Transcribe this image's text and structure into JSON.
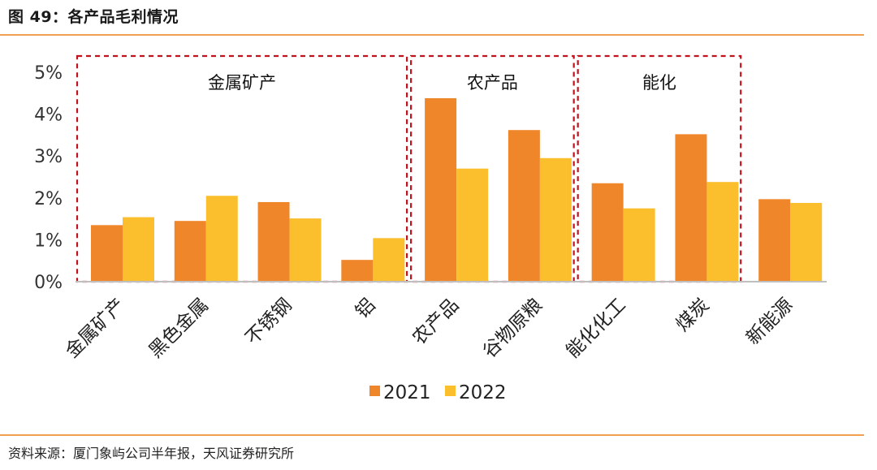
{
  "figure": {
    "title": "图 49：各产品毛利情况",
    "source": "资料来源：厦门象屿公司半年报，天风证券研究所"
  },
  "colors": {
    "series_2021": "#f0862a",
    "series_2022": "#fbbf2e",
    "group_box": "#c0131e",
    "axis": "#bfbfbf",
    "rule": "#f0a050"
  },
  "chart_data": {
    "type": "bar",
    "categories": [
      "金属矿产",
      "黑色金属",
      "不锈钢",
      "铝",
      "农产品",
      "谷物原粮",
      "能化化工",
      "煤炭",
      "新能源"
    ],
    "series": [
      {
        "name": "2021",
        "values": [
          1.35,
          1.45,
          1.9,
          0.52,
          4.38,
          3.62,
          2.35,
          3.52,
          1.97
        ]
      },
      {
        "name": "2022",
        "values": [
          1.54,
          2.05,
          1.51,
          1.04,
          2.7,
          2.95,
          1.75,
          2.38,
          1.88
        ]
      }
    ],
    "ylim": [
      0,
      5
    ],
    "yticks": [
      "0%",
      "1%",
      "2%",
      "3%",
      "4%",
      "5%"
    ],
    "grid": false,
    "legend": "bottom",
    "annotations": [
      {
        "label": "金属矿产",
        "categories": [
          0,
          3
        ]
      },
      {
        "label": "农产品",
        "categories": [
          4,
          5
        ]
      },
      {
        "label": "能化",
        "categories": [
          6,
          7
        ]
      }
    ]
  }
}
